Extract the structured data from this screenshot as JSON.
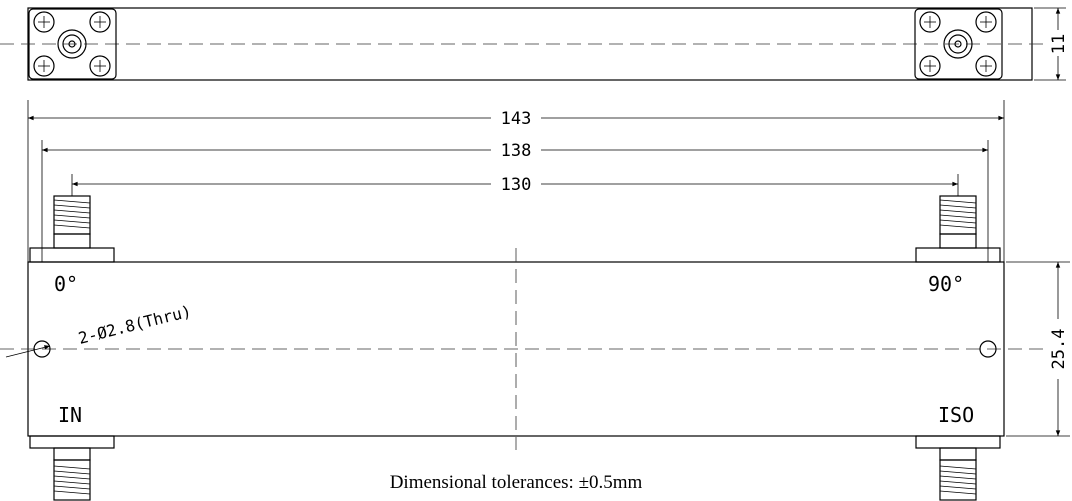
{
  "dimensions": {
    "overall_length": "143",
    "mount_hole_spacing": "138",
    "connector_spacing": "130",
    "height": "11",
    "width": "25.4"
  },
  "ports": {
    "top_left": "0°",
    "top_right": "90°",
    "bottom_left": "IN",
    "bottom_right": "ISO"
  },
  "hole_callout": "2-Ø2.8(Thru)",
  "tolerance_note": "Dimensional tolerances: ±0.5mm"
}
